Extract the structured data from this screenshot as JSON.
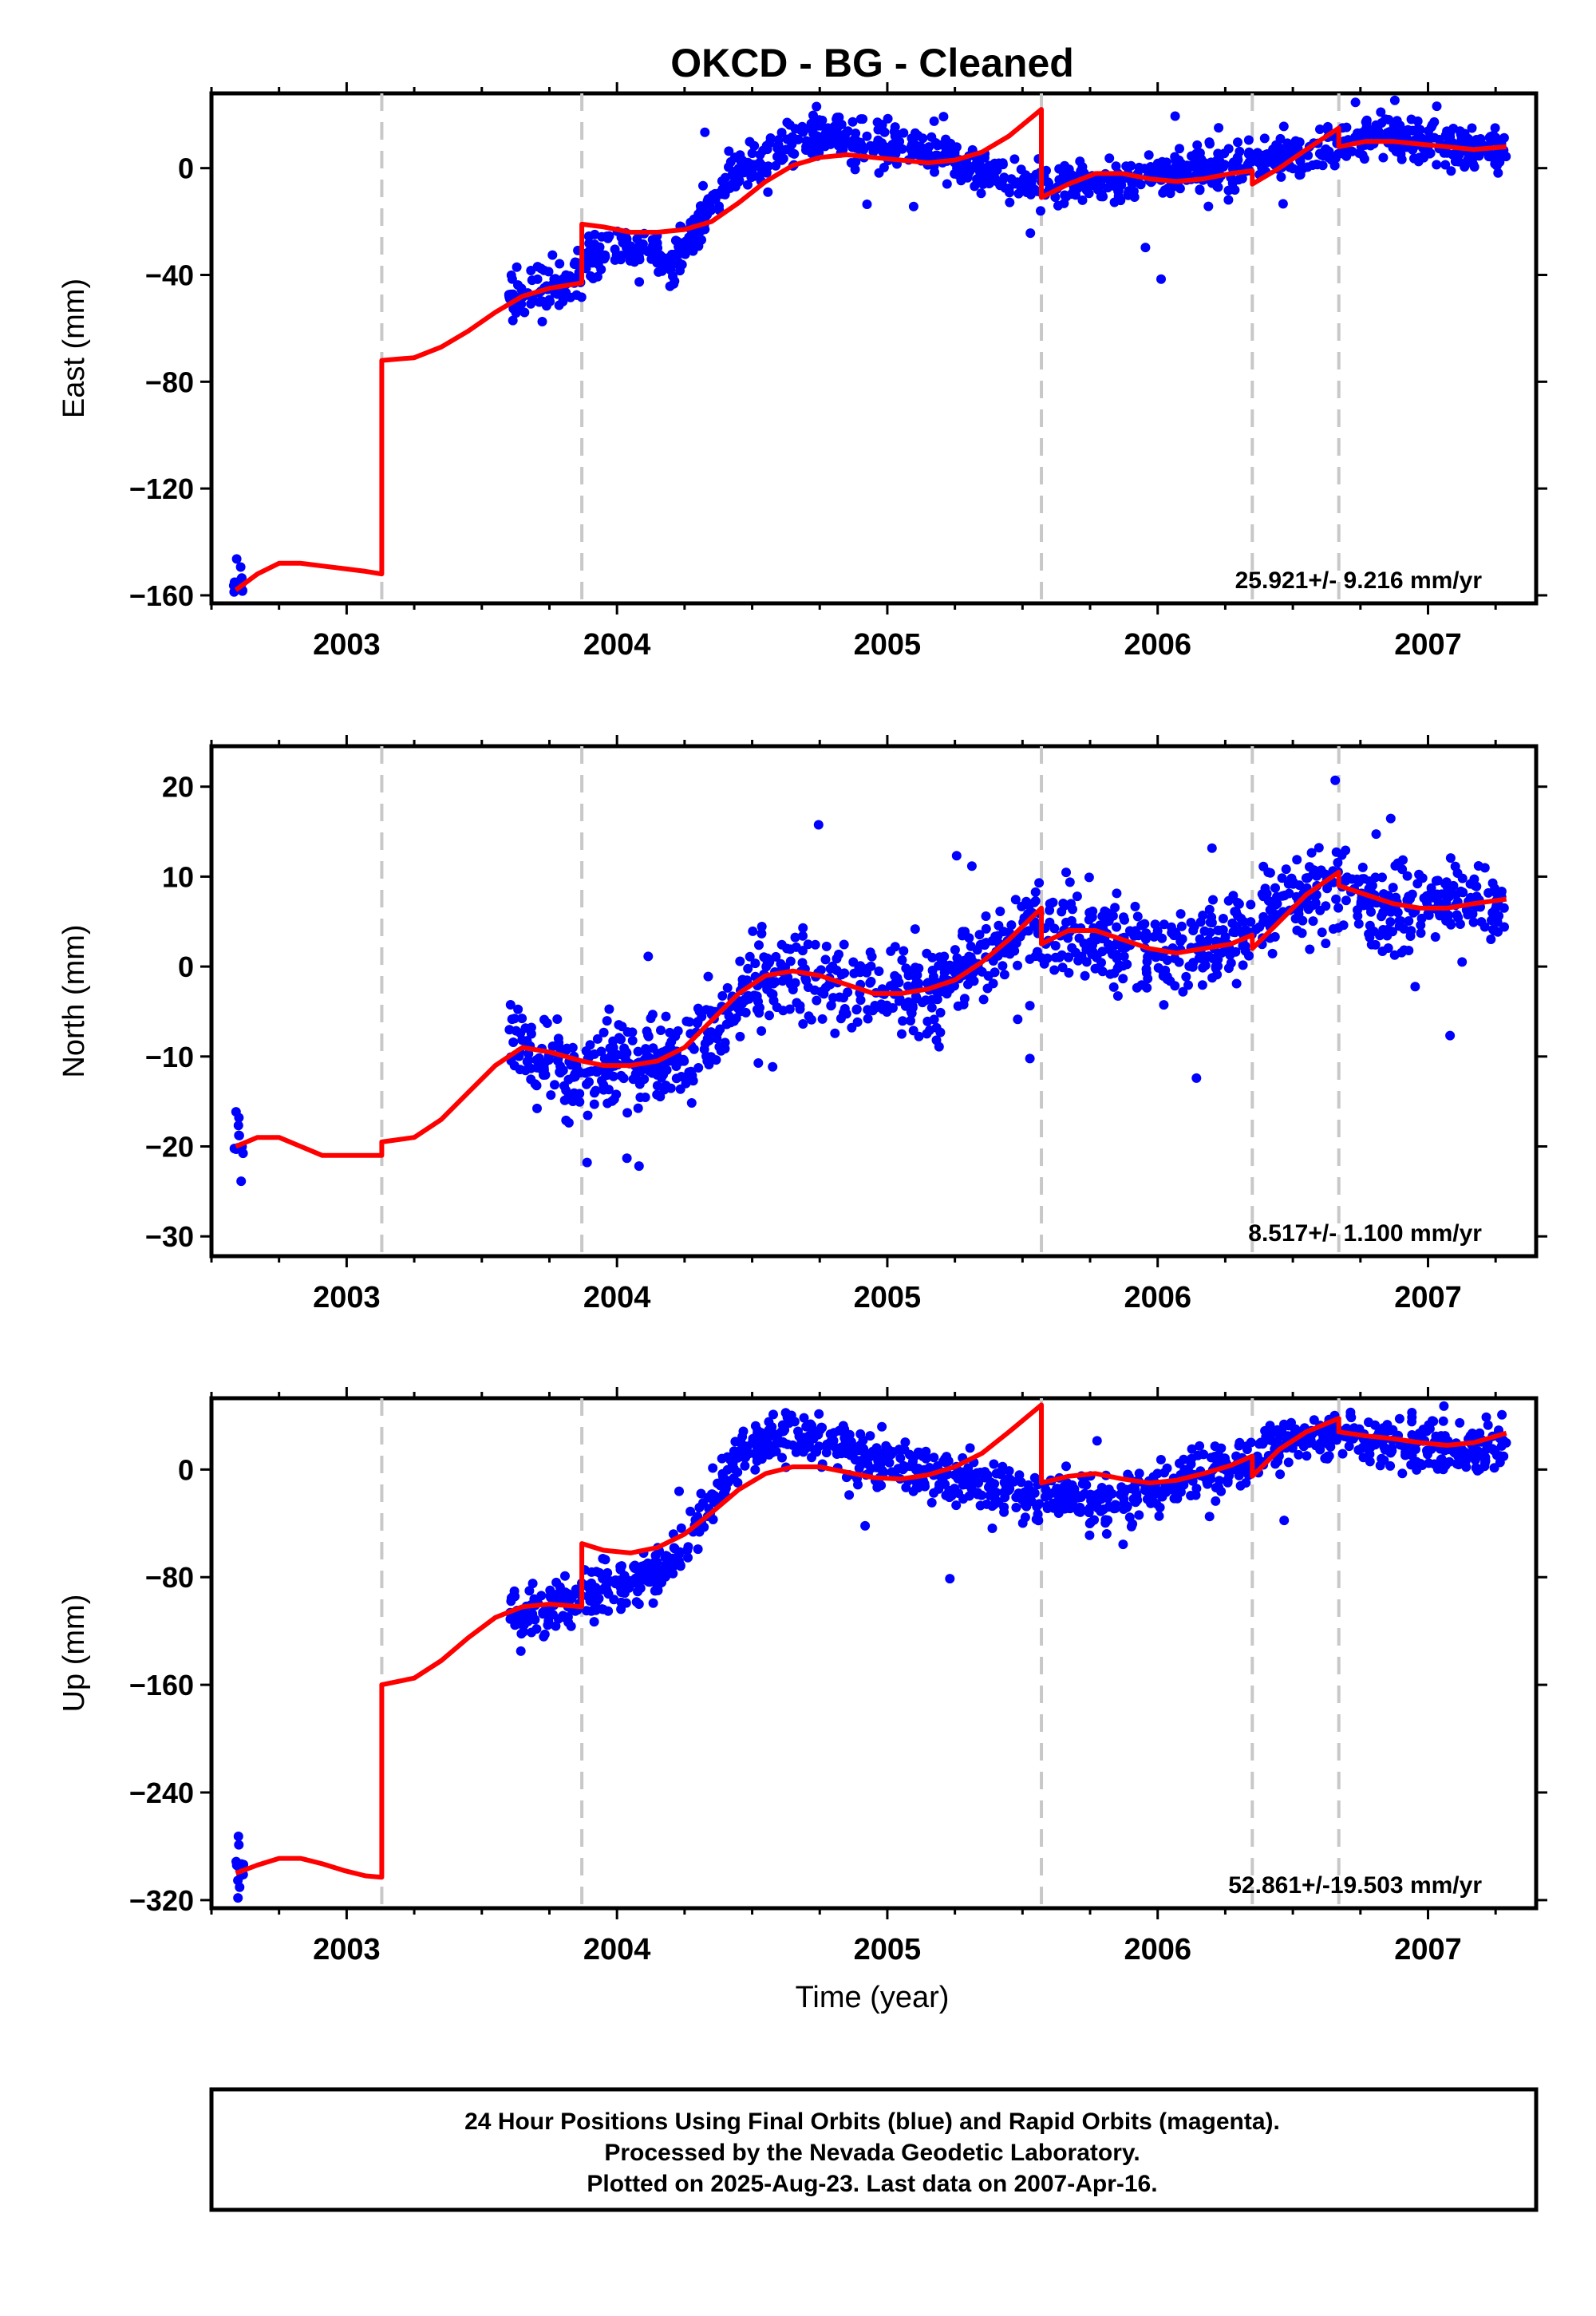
{
  "title": "OKCD  - BG - Cleaned",
  "xlabel": "Time (year)",
  "footer": {
    "line1": "24 Hour Positions Using Final Orbits (blue) and Rapid Orbits (magenta).",
    "line2": "Processed by the Nevada Geodetic Laboratory.",
    "line3": "Plotted on 2025-Aug-23. Last data on 2007-Apr-16."
  },
  "colors": {
    "data": "#0000ff",
    "model": "#ff0000",
    "breaks": "#c8c8c8",
    "frame": "#000000"
  },
  "chart_data": [
    {
      "type": "scatter",
      "name": "east",
      "ylabel": "East (mm)",
      "rate": "25.921+/- 9.216 mm/yr",
      "xlim": [
        2002.5,
        2007.4
      ],
      "ylim": [
        -163,
        28
      ],
      "x_ticks": [
        2003,
        2004,
        2005,
        2006,
        2007
      ],
      "y_ticks": [
        0,
        -40,
        -80,
        -120,
        -160
      ],
      "breaks": [
        2003.13,
        2003.87,
        2005.57,
        2006.35,
        2006.67
      ],
      "data_segments": [
        {
          "x": [
            2002.58,
            2002.62
          ],
          "y": [
            -157,
            -153
          ]
        },
        {
          "x": [
            2003.6,
            2003.7,
            2003.8,
            2003.87
          ],
          "y": [
            -52,
            -46,
            -44,
            -42
          ]
        },
        {
          "x": [
            2003.88,
            2004.0,
            2004.1,
            2004.2,
            2004.3,
            2004.4,
            2004.5,
            2004.6,
            2004.7,
            2004.8,
            2004.9,
            2005.0,
            2005.1,
            2005.2,
            2005.3,
            2005.4,
            2005.5,
            2005.57
          ],
          "y": [
            -32,
            -30,
            -31,
            -36,
            -22,
            -8,
            1,
            7,
            12,
            13,
            10,
            9,
            8,
            6,
            0,
            -3,
            -6,
            -5
          ]
        },
        {
          "x": [
            2005.58,
            2005.7,
            2005.8,
            2005.9,
            2006.0,
            2006.1,
            2006.2,
            2006.35
          ],
          "y": [
            -7,
            -5,
            -6,
            -4,
            -2,
            -1,
            0,
            1
          ]
        },
        {
          "x": [
            2006.36,
            2006.45,
            2006.55,
            2006.67
          ],
          "y": [
            3,
            5,
            4,
            8
          ]
        },
        {
          "x": [
            2006.68,
            2006.8,
            2006.9,
            2007.0,
            2007.1,
            2007.2,
            2007.29
          ],
          "y": [
            10,
            11,
            11,
            10,
            9,
            8,
            7
          ]
        }
      ],
      "model_segments": [
        {
          "x": [
            2002.59,
            2002.67,
            2002.75,
            2002.83,
            2002.91,
            2002.99,
            2003.07,
            2003.13
          ],
          "y": [
            -158,
            -152,
            -148,
            -148,
            -149,
            -150,
            -151,
            -152
          ]
        },
        {
          "x": [
            2003.13,
            2003.25,
            2003.35,
            2003.45,
            2003.55,
            2003.65,
            2003.75,
            2003.87
          ],
          "y": [
            -72,
            -71,
            -67,
            -61,
            -54,
            -48,
            -45,
            -43
          ]
        },
        {
          "x": [
            2003.87,
            2003.95,
            2004.05,
            2004.15,
            2004.25,
            2004.35,
            2004.45,
            2004.55,
            2004.65,
            2004.75,
            2004.85,
            2004.95,
            2005.05,
            2005.15,
            2005.25,
            2005.35,
            2005.45,
            2005.57
          ],
          "y": [
            -21,
            -22,
            -24,
            -24,
            -23,
            -20,
            -13,
            -5,
            1,
            4,
            5,
            4,
            3,
            2,
            3,
            6,
            12,
            22
          ]
        },
        {
          "x": [
            2005.57,
            2005.67,
            2005.77,
            2005.87,
            2005.97,
            2006.07,
            2006.17,
            2006.27,
            2006.35
          ],
          "y": [
            -11,
            -6,
            -2,
            -2,
            -4,
            -5,
            -4,
            -2,
            -1
          ]
        },
        {
          "x": [
            2006.35,
            2006.45,
            2006.55,
            2006.67
          ],
          "y": [
            -6,
            0,
            7,
            15
          ]
        },
        {
          "x": [
            2006.67,
            2006.77,
            2006.87,
            2006.97,
            2007.07,
            2007.17,
            2007.29
          ],
          "y": [
            8,
            10,
            10,
            9,
            8,
            7,
            8
          ]
        }
      ]
    },
    {
      "type": "scatter",
      "name": "north",
      "ylabel": "North (mm)",
      "rate": "8.517+/- 1.100 mm/yr",
      "xlim": [
        2002.5,
        2007.4
      ],
      "ylim": [
        -32.2,
        24.5
      ],
      "x_ticks": [
        2003,
        2004,
        2005,
        2006,
        2007
      ],
      "y_ticks": [
        20,
        10,
        0,
        -10,
        -20,
        -30
      ],
      "breaks": [
        2003.13,
        2003.87,
        2005.57,
        2006.35,
        2006.67
      ],
      "data_segments": [
        {
          "x": [
            2002.58,
            2002.62
          ],
          "y": [
            -19,
            -20
          ]
        },
        {
          "x": [
            2003.6,
            2003.7,
            2003.8,
            2003.87
          ],
          "y": [
            -8,
            -10,
            -11,
            -12
          ]
        },
        {
          "x": [
            2003.88,
            2004.0,
            2004.1,
            2004.2,
            2004.3,
            2004.4,
            2004.5,
            2004.6,
            2004.7,
            2004.8,
            2004.9,
            2005.0,
            2005.1,
            2005.2,
            2005.3,
            2005.4,
            2005.5,
            2005.57
          ],
          "y": [
            -12,
            -11,
            -11,
            -10,
            -9,
            -6,
            -2,
            0,
            -1,
            -2,
            -3,
            -3,
            -3,
            -2,
            0,
            2,
            4,
            6
          ]
        },
        {
          "x": [
            2005.58,
            2005.7,
            2005.8,
            2005.9,
            2006.0,
            2006.1,
            2006.2,
            2006.35
          ],
          "y": [
            4,
            4,
            3,
            2,
            2,
            2,
            3,
            4
          ]
        },
        {
          "x": [
            2006.36,
            2006.45,
            2006.55,
            2006.67
          ],
          "y": [
            5,
            7,
            8,
            9
          ]
        },
        {
          "x": [
            2006.68,
            2006.8,
            2006.9,
            2007.0,
            2007.1,
            2007.2,
            2007.29
          ],
          "y": [
            8,
            7,
            6,
            7,
            7,
            7,
            7
          ]
        }
      ],
      "model_segments": [
        {
          "x": [
            2002.59,
            2002.67,
            2002.75,
            2002.83,
            2002.91,
            2002.99,
            2003.07,
            2003.13
          ],
          "y": [
            -20,
            -19,
            -19,
            -20,
            -21,
            -21,
            -21,
            -21
          ]
        },
        {
          "x": [
            2003.13,
            2003.25,
            2003.35,
            2003.45,
            2003.55,
            2003.65,
            2003.75,
            2003.87
          ],
          "y": [
            -19.5,
            -19,
            -17,
            -14,
            -11,
            -9,
            -9.5,
            -10.5
          ]
        },
        {
          "x": [
            2003.87,
            2003.95,
            2004.05,
            2004.15,
            2004.25,
            2004.35,
            2004.45,
            2004.55,
            2004.65,
            2004.75,
            2004.85,
            2004.95,
            2005.05,
            2005.15,
            2005.25,
            2005.35,
            2005.45,
            2005.57
          ],
          "y": [
            -10.5,
            -11,
            -11,
            -10.5,
            -9,
            -6,
            -3,
            -1,
            -0.5,
            -1,
            -2,
            -3,
            -3,
            -2.5,
            -1.5,
            0.5,
            3,
            6.5
          ]
        },
        {
          "x": [
            2005.57,
            2005.67,
            2005.77,
            2005.87,
            2005.97,
            2006.07,
            2006.17,
            2006.27,
            2006.35
          ],
          "y": [
            2.5,
            4,
            4,
            3,
            2,
            1.5,
            2,
            2.5,
            3.5
          ]
        },
        {
          "x": [
            2006.35,
            2006.45,
            2006.55,
            2006.67
          ],
          "y": [
            2,
            5,
            8,
            10.5
          ]
        },
        {
          "x": [
            2006.67,
            2006.77,
            2006.87,
            2006.97,
            2007.07,
            2007.17,
            2007.29
          ],
          "y": [
            9,
            8,
            7,
            6.5,
            6.5,
            7,
            7.5
          ]
        }
      ]
    },
    {
      "type": "scatter",
      "name": "up",
      "ylabel": "Up (mm)",
      "rate": "52.861+/-19.503 mm/yr",
      "xlim": [
        2002.5,
        2007.4
      ],
      "ylim": [
        -326,
        53
      ],
      "x_ticks": [
        2003,
        2004,
        2005,
        2006,
        2007
      ],
      "y_ticks": [
        0,
        -80,
        -160,
        -240,
        -320
      ],
      "breaks": [
        2003.13,
        2003.87,
        2005.57,
        2006.35,
        2006.67
      ],
      "data_segments": [
        {
          "x": [
            2002.58,
            2002.62
          ],
          "y": [
            -295,
            -300
          ]
        },
        {
          "x": [
            2003.6,
            2003.7,
            2003.8,
            2003.87
          ],
          "y": [
            -110,
            -105,
            -100,
            -95
          ]
        },
        {
          "x": [
            2003.88,
            2004.0,
            2004.1,
            2004.2,
            2004.3,
            2004.4,
            2004.5,
            2004.6,
            2004.7,
            2004.8,
            2004.9,
            2005.0,
            2005.1,
            2005.2,
            2005.3,
            2005.4,
            2005.5,
            2005.57
          ],
          "y": [
            -90,
            -85,
            -80,
            -70,
            -40,
            -5,
            20,
            25,
            25,
            20,
            10,
            5,
            0,
            -5,
            -10,
            -15,
            -20,
            -20
          ]
        },
        {
          "x": [
            2005.58,
            2005.7,
            2005.8,
            2005.9,
            2006.0,
            2006.1,
            2006.2,
            2006.35
          ],
          "y": [
            -20,
            -20,
            -25,
            -20,
            -15,
            -5,
            0,
            5
          ]
        },
        {
          "x": [
            2006.36,
            2006.45,
            2006.55,
            2006.67
          ],
          "y": [
            15,
            20,
            25,
            25
          ]
        },
        {
          "x": [
            2006.68,
            2006.8,
            2006.9,
            2007.0,
            2007.1,
            2007.2,
            2007.29
          ],
          "y": [
            25,
            20,
            20,
            20,
            15,
            15,
            15
          ]
        }
      ],
      "model_segments": [
        {
          "x": [
            2002.59,
            2002.67,
            2002.75,
            2002.83,
            2002.91,
            2002.99,
            2003.07,
            2003.13
          ],
          "y": [
            -300,
            -294,
            -289,
            -289,
            -293,
            -298,
            -302,
            -303
          ]
        },
        {
          "x": [
            2003.13,
            2003.25,
            2003.35,
            2003.45,
            2003.55,
            2003.65,
            2003.75,
            2003.87
          ],
          "y": [
            -160,
            -155,
            -142,
            -125,
            -110,
            -102,
            -100,
            -102
          ]
        },
        {
          "x": [
            2003.87,
            2003.95,
            2004.05,
            2004.15,
            2004.25,
            2004.35,
            2004.45,
            2004.55,
            2004.65,
            2004.75,
            2004.85,
            2004.95,
            2005.05,
            2005.15,
            2005.25,
            2005.35,
            2005.45,
            2005.57
          ],
          "y": [
            -55,
            -60,
            -62,
            -58,
            -48,
            -32,
            -15,
            -3,
            2,
            2,
            -2,
            -6,
            -7,
            -4,
            2,
            12,
            28,
            48
          ]
        },
        {
          "x": [
            2005.57,
            2005.67,
            2005.77,
            2005.87,
            2005.97,
            2006.07,
            2006.17,
            2006.27,
            2006.35
          ],
          "y": [
            -10,
            -5,
            -3,
            -7,
            -10,
            -8,
            -3,
            3,
            10
          ]
        },
        {
          "x": [
            2006.35,
            2006.45,
            2006.55,
            2006.67
          ],
          "y": [
            -5,
            15,
            28,
            38
          ]
        },
        {
          "x": [
            2006.67,
            2006.77,
            2006.87,
            2006.97,
            2007.07,
            2007.17,
            2007.29
          ],
          "y": [
            28,
            25,
            23,
            20,
            18,
            20,
            27
          ]
        }
      ]
    }
  ]
}
